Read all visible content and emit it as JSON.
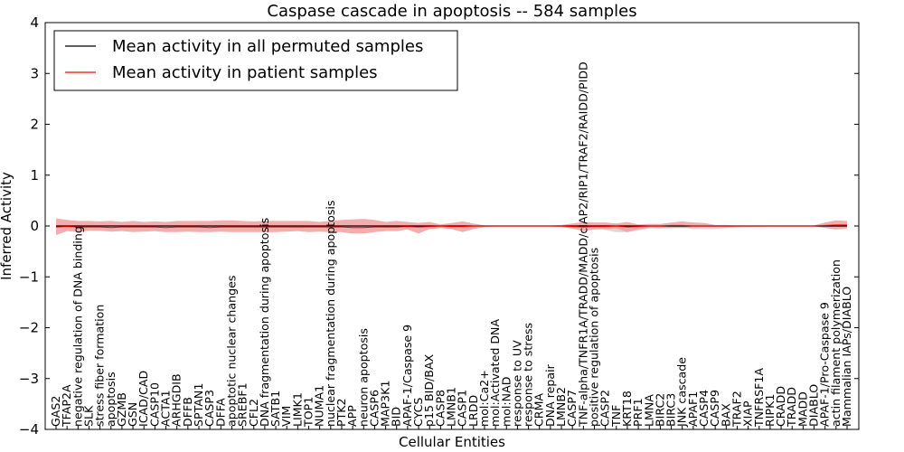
{
  "chart_data": {
    "type": "line",
    "title": "Caspase cascade in apoptosis -- 584 samples",
    "xlabel": "Cellular Entities",
    "ylabel": "Inferred Activity",
    "ylim": [
      -4,
      4
    ],
    "yticks": [
      -4,
      -3,
      -2,
      -1,
      0,
      1,
      2,
      3,
      4
    ],
    "ytick_labels": [
      "−4",
      "−3",
      "−2",
      "−1",
      "0",
      "1",
      "2",
      "3",
      "4"
    ],
    "legend_position": "upper-left",
    "colors": {
      "permuted": "#000000",
      "patient": "#ff0000",
      "band": "#f0a0a0",
      "perm_band": "#bfbfbf"
    },
    "categories": [
      "GAS2",
      "TFAP2A",
      "negative regulation of DNA binding",
      "SLK",
      "stress fiber formation",
      "apoptosis",
      "GZMB",
      "GSN",
      "ICAD/CAD",
      "CASP10",
      "ACTA1",
      "ARHGDIB",
      "DFFB",
      "SPTAN1",
      "CASP3",
      "DFFA",
      "apoptotic nuclear changes",
      "SREBF1",
      "CFL2",
      "DNA fragmentation during apoptosis",
      "SATB1",
      "VIM",
      "LIMK1",
      "TOP1",
      "NUMA1",
      "nuclear fragmentation during apoptosis",
      "PTK2",
      "APP",
      "neuron apoptosis",
      "CASP6",
      "MAP3K1",
      "BID",
      "APAF-1/Caspase 9",
      "CYCS",
      "p15 BID/BAX",
      "CASP8",
      "LMNB1",
      "CASP1",
      "LRDD",
      "mol:Ca2+",
      "mol:Activated DNA",
      "mol:NAD",
      "response to UV",
      "response to stress",
      "CRMA",
      "DNA repair",
      "LMNB2",
      "CASP7",
      "TNF-alpha/TNFR1A/TRADD/MADD/cIAP2/RIP1/TRAF2/RAIDD/PIDD",
      "positive regulation of apoptosis",
      "CASP2",
      "TNF",
      "KRT18",
      "PRF1",
      "LMNA",
      "BIRC2",
      "BIRC3",
      "JNK cascade",
      "APAF1",
      "CASP4",
      "CASP9",
      "BAX",
      "TRAF2",
      "XIAP",
      "TNFRSF1A",
      "RIPK1",
      "CRADD",
      "TRADD",
      "MADD",
      "DIABLO",
      "APAF-1/Pro-Caspase 9",
      "actin filament polymerization",
      "Mammalian IAPs/DIABLO"
    ],
    "series": [
      {
        "name": "Mean activity in all permuted samples",
        "color": "#000000",
        "values": [
          0,
          0,
          0,
          0,
          0,
          0,
          0,
          0,
          0,
          0,
          0,
          0,
          0,
          0,
          0,
          0,
          0,
          0,
          0,
          0,
          0,
          0,
          0,
          0,
          0,
          0,
          0,
          0,
          0,
          0,
          0,
          0,
          0,
          0,
          0,
          0,
          0,
          0,
          0,
          0,
          0,
          0,
          0,
          0,
          0,
          0,
          0,
          0,
          0,
          0,
          0,
          0,
          0,
          0,
          0,
          0,
          0,
          0,
          0,
          0,
          0,
          0,
          0,
          0,
          0,
          0,
          0,
          0,
          0,
          0,
          0,
          0,
          0
        ]
      },
      {
        "name": "Mean activity in patient samples",
        "color": "#ff0000",
        "values": [
          -0.02,
          -0.01,
          -0.02,
          -0.02,
          -0.02,
          -0.03,
          -0.02,
          -0.02,
          -0.02,
          -0.02,
          -0.03,
          -0.02,
          -0.02,
          -0.02,
          -0.03,
          -0.02,
          -0.02,
          -0.02,
          -0.02,
          -0.02,
          -0.02,
          -0.02,
          -0.02,
          -0.02,
          -0.02,
          -0.02,
          -0.02,
          -0.03,
          -0.03,
          -0.02,
          -0.02,
          -0.02,
          -0.01,
          -0.02,
          -0.01,
          0,
          -0.01,
          -0.01,
          0,
          0,
          0,
          0,
          0,
          0,
          0,
          0,
          0,
          -0.01,
          -0.02,
          -0.01,
          -0.01,
          0,
          -0.02,
          -0.01,
          0,
          0,
          0.01,
          0.01,
          0,
          0,
          0,
          0,
          0,
          0,
          0,
          0,
          0,
          0,
          0,
          0,
          0.01,
          0.02,
          0.02
        ]
      }
    ],
    "band": {
      "upper": [
        0.15,
        0.12,
        0.1,
        0.1,
        0.09,
        0.1,
        0.08,
        0.1,
        0.08,
        0.09,
        0.08,
        0.1,
        0.1,
        0.1,
        0.1,
        0.11,
        0.11,
        0.1,
        0.09,
        0.1,
        0.1,
        0.1,
        0.1,
        0.1,
        0.08,
        0.1,
        0.12,
        0.13,
        0.14,
        0.12,
        0.08,
        0.1,
        0.08,
        0.06,
        0.08,
        0.03,
        0.06,
        0.09,
        0.05,
        0.01,
        0.01,
        0.01,
        0.01,
        0.01,
        0.01,
        0.01,
        0.02,
        0.05,
        0.08,
        0.07,
        0.07,
        0.05,
        0.08,
        0.03,
        0.04,
        0.04,
        0.07,
        0.09,
        0.07,
        0.06,
        0.02,
        0.02,
        0.01,
        0.01,
        0.01,
        0.01,
        0.01,
        0.01,
        0.01,
        0.01,
        0.07,
        0.11,
        0.1
      ],
      "lower": [
        -0.18,
        -0.1,
        -0.12,
        -0.09,
        -0.09,
        -0.11,
        -0.1,
        -0.12,
        -0.11,
        -0.1,
        -0.12,
        -0.12,
        -0.11,
        -0.12,
        -0.12,
        -0.11,
        -0.12,
        -0.12,
        -0.12,
        -0.12,
        -0.12,
        -0.11,
        -0.1,
        -0.12,
        -0.11,
        -0.12,
        -0.12,
        -0.15,
        -0.15,
        -0.12,
        -0.1,
        -0.1,
        -0.07,
        -0.15,
        -0.06,
        -0.04,
        -0.06,
        -0.12,
        -0.06,
        -0.02,
        -0.01,
        -0.01,
        -0.01,
        -0.01,
        -0.01,
        -0.01,
        -0.02,
        -0.05,
        -0.1,
        -0.07,
        -0.06,
        -0.05,
        -0.12,
        -0.06,
        -0.04,
        -0.04,
        -0.04,
        -0.04,
        -0.03,
        -0.02,
        -0.02,
        -0.02,
        -0.01,
        -0.01,
        -0.01,
        -0.01,
        -0.01,
        -0.01,
        -0.01,
        -0.01,
        -0.04,
        -0.07,
        -0.05
      ]
    },
    "perm_band": {
      "upper": [
        0,
        0,
        0,
        0,
        0,
        0,
        0,
        0,
        0,
        0,
        0,
        0,
        0,
        0,
        0,
        0,
        0,
        0,
        0,
        0,
        0,
        0,
        0,
        0,
        0,
        0,
        0,
        0,
        0,
        0,
        0,
        0,
        0,
        0,
        0,
        0,
        0,
        0,
        0,
        0,
        0,
        0,
        0,
        0,
        0,
        0,
        0,
        0,
        0,
        0,
        0.02,
        0.03,
        0.03,
        0.02,
        0,
        0,
        0,
        0,
        0,
        0,
        0,
        0,
        0,
        0,
        0,
        0,
        0,
        0,
        0,
        0,
        0,
        0,
        0
      ],
      "lower": [
        0,
        0,
        0,
        0,
        0,
        0,
        0,
        0,
        0,
        0,
        0,
        0,
        0,
        0,
        0,
        0,
        0,
        0,
        0,
        0,
        0,
        0,
        0,
        0,
        0,
        0,
        0,
        0,
        0,
        0,
        0,
        0,
        0,
        0,
        0,
        0,
        0,
        0,
        0,
        0,
        0,
        0,
        0,
        0,
        0,
        0,
        0,
        0,
        0,
        0,
        -0.08,
        -0.12,
        -0.12,
        -0.09,
        -0.04,
        -0.05,
        -0.04,
        -0.03,
        -0.06,
        -0.06,
        -0.06,
        -0.04,
        -0.03,
        -0.02,
        -0.02,
        -0.01,
        -0.01,
        -0.01,
        -0.01,
        -0.01,
        -0.01,
        -0.01,
        -0.01
      ]
    }
  }
}
